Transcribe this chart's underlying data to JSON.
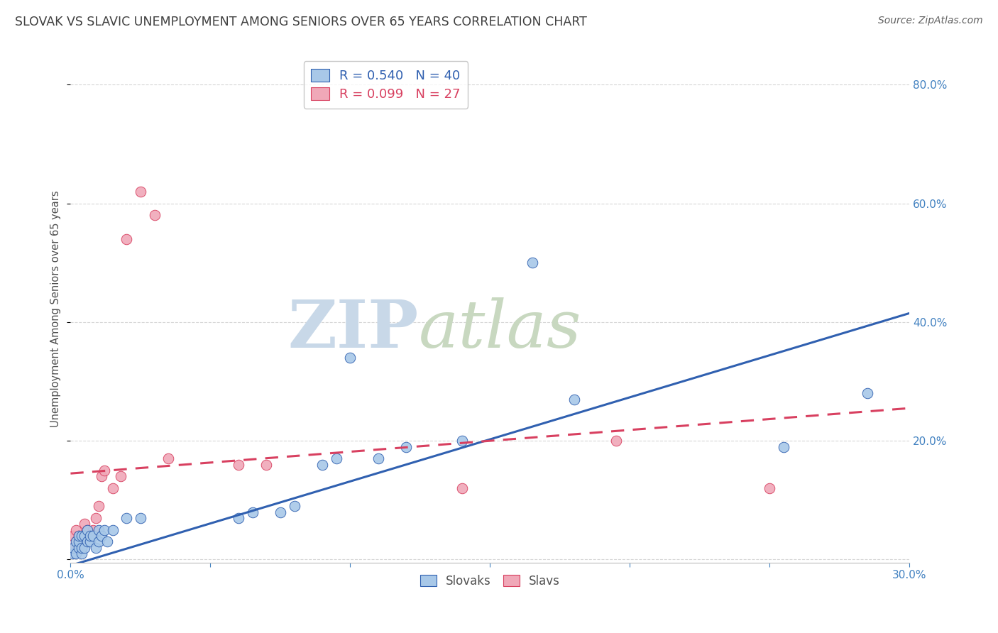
{
  "title": "SLOVAK VS SLAVIC UNEMPLOYMENT AMONG SENIORS OVER 65 YEARS CORRELATION CHART",
  "source": "Source: ZipAtlas.com",
  "ylabel": "Unemployment Among Seniors over 65 years",
  "xlim": [
    0.0,
    0.3
  ],
  "ylim": [
    -0.005,
    0.85
  ],
  "xticks": [
    0.0,
    0.05,
    0.1,
    0.15,
    0.2,
    0.25,
    0.3
  ],
  "yticks": [
    0.0,
    0.2,
    0.4,
    0.6,
    0.8
  ],
  "blue_r": "0.540",
  "blue_n": "40",
  "pink_r": "0.099",
  "pink_n": "27",
  "blue_color": "#a8c8e8",
  "pink_color": "#f0a8b8",
  "blue_line_color": "#3060b0",
  "pink_line_color": "#d84060",
  "background_color": "#ffffff",
  "grid_color": "#cccccc",
  "title_color": "#404040",
  "source_color": "#606060",
  "axis_label_color": "#505050",
  "right_tick_color": "#4080c0",
  "watermark_zip_color": "#c8d8e8",
  "watermark_atlas_color": "#c8d8c0",
  "slovaks_x": [
    0.001,
    0.001,
    0.002,
    0.002,
    0.003,
    0.003,
    0.003,
    0.004,
    0.004,
    0.004,
    0.005,
    0.005,
    0.006,
    0.006,
    0.007,
    0.007,
    0.008,
    0.009,
    0.01,
    0.01,
    0.011,
    0.012,
    0.013,
    0.015,
    0.02,
    0.025,
    0.06,
    0.065,
    0.075,
    0.08,
    0.09,
    0.095,
    0.1,
    0.11,
    0.12,
    0.14,
    0.165,
    0.18,
    0.255,
    0.285
  ],
  "slovaks_y": [
    0.01,
    0.02,
    0.01,
    0.03,
    0.02,
    0.03,
    0.04,
    0.01,
    0.02,
    0.04,
    0.02,
    0.04,
    0.03,
    0.05,
    0.03,
    0.04,
    0.04,
    0.02,
    0.03,
    0.05,
    0.04,
    0.05,
    0.03,
    0.05,
    0.07,
    0.07,
    0.07,
    0.08,
    0.08,
    0.09,
    0.16,
    0.17,
    0.34,
    0.17,
    0.19,
    0.2,
    0.5,
    0.27,
    0.19,
    0.28
  ],
  "slavs_x": [
    0.001,
    0.001,
    0.002,
    0.002,
    0.003,
    0.003,
    0.004,
    0.005,
    0.005,
    0.006,
    0.007,
    0.008,
    0.009,
    0.01,
    0.011,
    0.012,
    0.015,
    0.018,
    0.02,
    0.025,
    0.03,
    0.035,
    0.06,
    0.07,
    0.14,
    0.195,
    0.25
  ],
  "slavs_y": [
    0.02,
    0.04,
    0.03,
    0.05,
    0.02,
    0.04,
    0.03,
    0.03,
    0.06,
    0.05,
    0.04,
    0.05,
    0.07,
    0.09,
    0.14,
    0.15,
    0.12,
    0.14,
    0.54,
    0.62,
    0.58,
    0.17,
    0.16,
    0.16,
    0.12,
    0.2,
    0.12
  ],
  "blue_line_x0": 0.0,
  "blue_line_y0": -0.01,
  "blue_line_x1": 0.3,
  "blue_line_y1": 0.415,
  "pink_line_x0": 0.0,
  "pink_line_y0": 0.145,
  "pink_line_x1": 0.3,
  "pink_line_y1": 0.255
}
